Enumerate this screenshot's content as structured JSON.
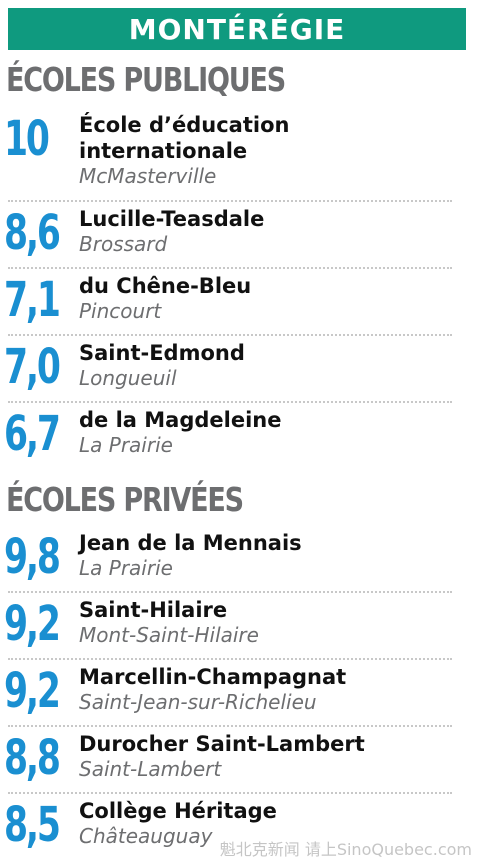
{
  "region": "MONTÉRÉGIE",
  "public": {
    "title": "ÉCOLES PUBLIQUES",
    "schools": [
      {
        "score": "10",
        "name_lines": [
          "École d’éducation",
          "internationale"
        ],
        "city": "McMasterville"
      },
      {
        "score": "8,6",
        "name_lines": [
          "Lucille-Teasdale"
        ],
        "city": "Brossard"
      },
      {
        "score": "7,1",
        "name_lines": [
          "du Chêne-Bleu"
        ],
        "city": "Pincourt"
      },
      {
        "score": "7,0",
        "name_lines": [
          "Saint-Edmond"
        ],
        "city": "Longueuil"
      },
      {
        "score": "6,7",
        "name_lines": [
          "de la Magdeleine"
        ],
        "city": "La Prairie"
      }
    ]
  },
  "private": {
    "title": "ÉCOLES PRIVÉES",
    "schools": [
      {
        "score": "9,8",
        "name_lines": [
          "Jean de la Mennais"
        ],
        "city": "La Prairie"
      },
      {
        "score": "9,2",
        "name_lines": [
          "Saint-Hilaire"
        ],
        "city": "Mont-Saint-Hilaire"
      },
      {
        "score": "9,2",
        "name_lines": [
          "Marcellin-Champagnat"
        ],
        "city": "Saint-Jean-sur-Richelieu"
      },
      {
        "score": "8,8",
        "name_lines": [
          "Durocher Saint-Lambert"
        ],
        "city": "Saint-Lambert"
      },
      {
        "score": "8,5",
        "name_lines": [
          "Collège Héritage"
        ],
        "city": "Châteauguay"
      }
    ]
  },
  "watermark": "魁北克新闻 请上SinoQuebec.com"
}
